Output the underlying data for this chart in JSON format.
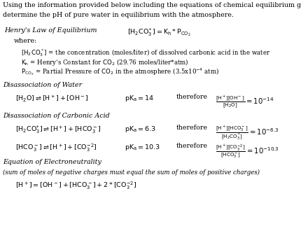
{
  "bg_color": "#ffffff",
  "text_color": "#000000",
  "fig_width": 4.31,
  "fig_height": 3.6,
  "dpi": 100,
  "intro_line1": "Using the information provided below including the equations of chemical equilibrium given,",
  "intro_line2": "determine the pH of pure water in equilibrium with the atmosphere.",
  "henry_label": "Henry's Law of Equilibrium",
  "henry_eq": "$[\\mathrm{H_2CO_3^*}] = \\mathrm{K_h}*\\mathrm{P_{CO_2}}$",
  "where": "where:",
  "henry_def1": "$[\\mathrm{H_2CO_3^*}]$ = the concentration (moles/liter) of dissolved carbonic acid in the water",
  "henry_def2": "$\\mathrm{K_h}$ = Henry's Constant for $\\mathrm{CO_2}$ (29.76 moles/liter*atm)",
  "henry_def3": "$\\mathrm{P_{CO_2}}$ = Partial Pressure of $\\mathrm{CO_2}$ in the atmosphere (3.5x10$^{-4}$ atm)",
  "diss_water_label": "Disassociation of Water",
  "diss_water_eq": "$[\\mathrm{H_2O}] \\rightleftharpoons [\\mathrm{H^+}] + [\\mathrm{OH^-}]$",
  "diss_water_pka": "$\\mathrm{pK_a} = 14$",
  "diss_water_therefore": "therefore",
  "diss_water_keq": "$\\frac{[\\mathrm{H^+}][\\mathrm{OH^-}]}{[\\mathrm{H_2O}]} = 10^{-14}$",
  "diss_carb_label": "Disassociation of Carbonic Acid",
  "diss_carb_eq1": "$[\\mathrm{H_2CO_3^{*}}] \\rightleftharpoons [\\mathrm{H^+}] +[\\mathrm{HCO_3^-}]$",
  "diss_carb_pka1": "$\\mathrm{pK_a} = 6.3$",
  "diss_carb_therefore1": "therefore",
  "diss_carb_keq1": "$\\frac{[\\mathrm{H^+}][\\mathrm{HCO_3^-}]}{[\\mathrm{H_2CO_3^*}]} = 10^{-6.3}$",
  "diss_carb_eq2": "$[\\mathrm{HCO_3^-}] \\rightleftharpoons [\\mathrm{H^+}] +[\\mathrm{CO_3^{-2}}]$",
  "diss_carb_pka2": "$\\mathrm{pK_a} = 10.3$",
  "diss_carb_therefore2": "therefore",
  "diss_carb_keq2": "$\\frac{[\\mathrm{H^+}][\\mathrm{CO_3^{-2}}]}{[\\mathrm{HCO_3^-}]} = 10^{-10.3}$",
  "electroneutrality_label": "Equation of Electroneutrality",
  "electroneutrality_sub": "(sum of moles of negative charges must equal the sum of moles of positive charges)",
  "electroneutrality_eq": "$[\\mathrm{H^+}] = [\\mathrm{OH^-}] + [\\mathrm{HCO_3^-}] + 2*[\\mathrm{CO_3^{-2}}]$"
}
